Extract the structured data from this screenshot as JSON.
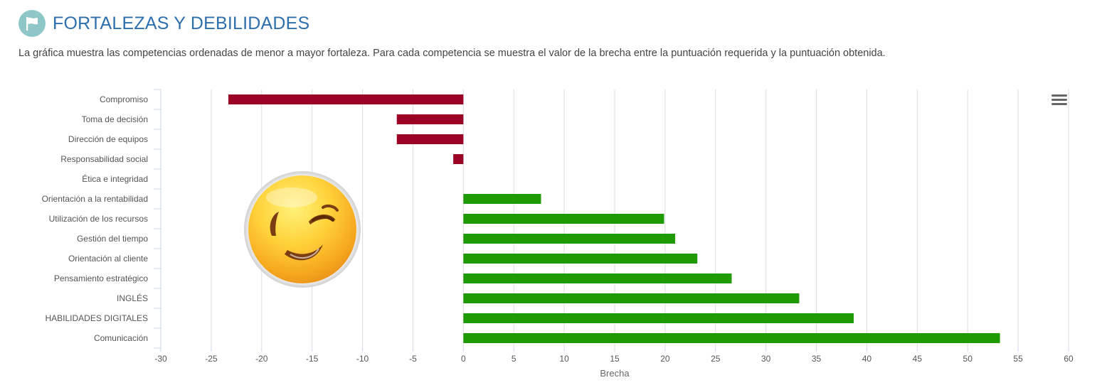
{
  "header": {
    "title": "FORTALEZAS Y DEBILIDADES",
    "description": "La gráfica muestra las competencias ordenadas de menor a mayor fortaleza. Para cada competencia se muestra el valor de la brecha entre la puntuación requerida y la puntuación obtenida.",
    "icon": "flag-icon"
  },
  "emoji": {
    "icon": "winking-face-emoji"
  },
  "menu": {
    "icon": "hamburger-menu-icon"
  },
  "chart_data": {
    "type": "bar",
    "orientation": "horizontal",
    "categories": [
      "Compromiso",
      "Toma de decisión",
      "Dirección de equipos",
      "Responsabilidad social",
      "Ética e integridad",
      "Orientación a la rentabilidad",
      "Utilización de los recursos",
      "Gestión del tiempo",
      "Orientación al cliente",
      "Pensamiento estratégico",
      "INGLÉS",
      "HABILIDADES DIGITALES",
      "Comunicación"
    ],
    "values": [
      -23.3,
      -6.6,
      -6.6,
      -1.0,
      0,
      7.7,
      19.9,
      21.0,
      23.2,
      26.6,
      33.3,
      38.7,
      53.2
    ],
    "xlabel": "Brecha",
    "ylabel": "",
    "xlim": [
      -30,
      60
    ],
    "xticks": [
      "-30",
      "-25",
      "-20",
      "-15",
      "-10",
      "-5",
      "0",
      "5",
      "10",
      "15",
      "20",
      "25",
      "30",
      "35",
      "40",
      "45",
      "50",
      "55",
      "60"
    ],
    "grid": true,
    "legend": "none",
    "colors": {
      "negative": "#9b0025",
      "positive": "#1f9a00",
      "grid": "#d8dce3",
      "axis": "#ccd6eb",
      "tick_label": "#555555",
      "category_label": "#555555"
    }
  }
}
